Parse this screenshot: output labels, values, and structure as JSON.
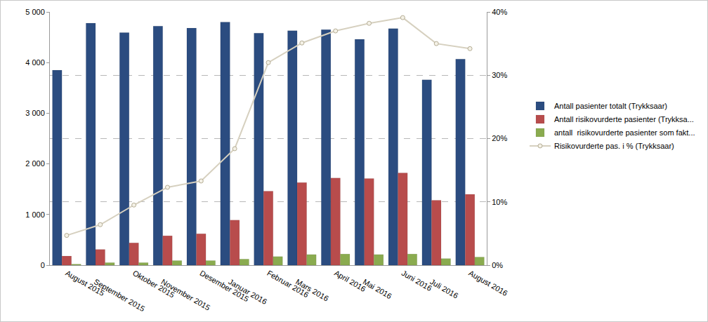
{
  "chart_data": {
    "type": "bar",
    "categories": [
      "August 2015",
      "September 2015",
      "Oktober 2015",
      "November 2015",
      "Desember 2015",
      "Januar 2016",
      "Februar 2016",
      "Mars 2016",
      "April 2016",
      "Mai 2016",
      "Juni 2016",
      "Juli 2016",
      "August 2016"
    ],
    "series": [
      {
        "name": "Antall pasienter totalt (Trykksaar)",
        "type": "bar",
        "color": "#2b4c80",
        "values": [
          3850,
          4780,
          4590,
          4720,
          4680,
          4800,
          4580,
          4630,
          4650,
          4460,
          4670,
          3660,
          4070
        ]
      },
      {
        "name": "Antall risikovurderte pasienter (Trykksa...",
        "type": "bar",
        "color": "#b84c4c",
        "values": [
          180,
          310,
          440,
          580,
          620,
          890,
          1460,
          1630,
          1720,
          1710,
          1820,
          1280,
          1400
        ]
      },
      {
        "name": "antall  risikovurderte pasienter som fakt...",
        "type": "bar",
        "color": "#8aab4f",
        "values": [
          20,
          50,
          50,
          90,
          90,
          120,
          170,
          210,
          220,
          210,
          220,
          130,
          160
        ]
      },
      {
        "name": "Risikovurderte pas. i % (Trykksaar)",
        "type": "line",
        "axis": "y2",
        "color": "#d6d0bf",
        "marker": "circle",
        "values": [
          4.7,
          6.4,
          9.5,
          12.3,
          13.3,
          18.4,
          32.0,
          35.1,
          37.0,
          38.2,
          39.1,
          35.0,
          34.2
        ]
      }
    ],
    "ylim": [
      0,
      5000
    ],
    "yticks": [
      0,
      {
        "value": 1000,
        "label": "1 000"
      },
      {
        "value": 2000,
        "label": "2 000"
      },
      {
        "value": 3000,
        "label": "3 000"
      },
      {
        "value": 4000,
        "label": "4 000"
      },
      {
        "value": 5000,
        "label": "5 000"
      }
    ],
    "y2lim": [
      0,
      40
    ],
    "y2ticks": [
      {
        "value": 0,
        "label": "0%"
      },
      {
        "value": 10,
        "label": "10%"
      },
      {
        "value": 20,
        "label": "20%"
      },
      {
        "value": 30,
        "label": "30%"
      },
      {
        "value": 40,
        "label": "40%"
      }
    ],
    "grid": true,
    "legend": "right"
  }
}
